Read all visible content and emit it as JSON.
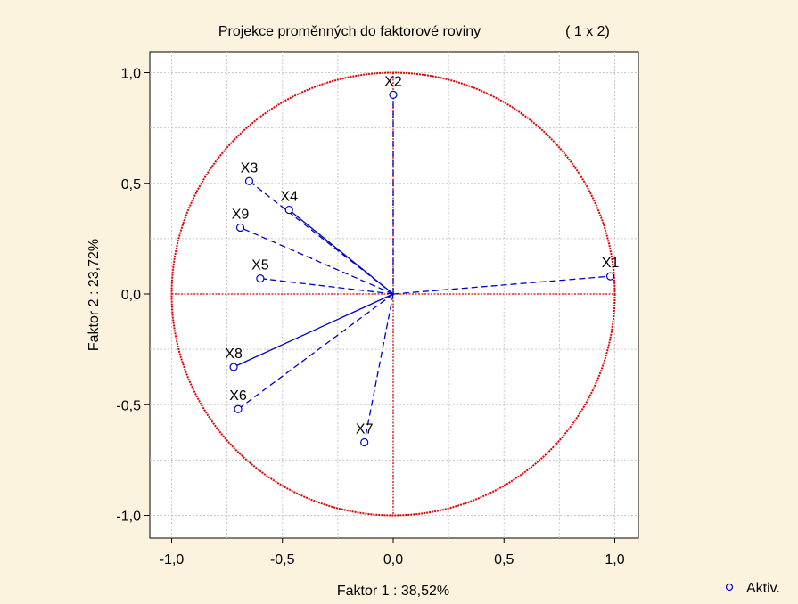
{
  "chart_data": {
    "type": "scatter",
    "title": "Projekce proměnných do faktorové roviny",
    "subtitle": "( 1 x   2)",
    "xlabel": "Faktor 1 : 38,52%",
    "ylabel": "Faktor 2 : 23,72%",
    "xlim": [
      -1.0,
      1.0
    ],
    "ylim": [
      -1.0,
      1.0
    ],
    "x_ticks": [
      -1.0,
      -0.5,
      0.0,
      0.5,
      1.0
    ],
    "y_ticks": [
      -1.0,
      -0.5,
      0.0,
      0.5,
      1.0
    ],
    "x_tick_labels": [
      "-1,0",
      "-0,5",
      "0,0",
      "0,5",
      "1,0"
    ],
    "y_tick_labels": [
      "-1,0",
      "-0,5",
      "0,0",
      "0,5",
      "1,0"
    ],
    "grid": true,
    "unit_circle": true,
    "legend": {
      "label": "Aktiv.",
      "placement": "bottom-right"
    },
    "colors": {
      "points": "#0000cc",
      "circle": "#dd0000",
      "background": "#fbf3de",
      "plot_bg": "#ffffff"
    },
    "series": [
      {
        "name": "Aktiv.",
        "points": [
          {
            "label": "X1",
            "x": 0.98,
            "y": 0.08,
            "line": "dashed"
          },
          {
            "label": "X2",
            "x": 0.0,
            "y": 0.9,
            "line": "dashed"
          },
          {
            "label": "X3",
            "x": -0.65,
            "y": 0.51,
            "line": "dashed"
          },
          {
            "label": "X4",
            "x": -0.47,
            "y": 0.38,
            "line": "solid"
          },
          {
            "label": "X9",
            "x": -0.69,
            "y": 0.3,
            "line": "dashed"
          },
          {
            "label": "X5",
            "x": -0.6,
            "y": 0.07,
            "line": "dashed"
          },
          {
            "label": "X8",
            "x": -0.72,
            "y": -0.33,
            "line": "solid"
          },
          {
            "label": "X6",
            "x": -0.7,
            "y": -0.52,
            "line": "dashed"
          },
          {
            "label": "X7",
            "x": -0.13,
            "y": -0.67,
            "line": "dashed"
          }
        ]
      }
    ]
  }
}
